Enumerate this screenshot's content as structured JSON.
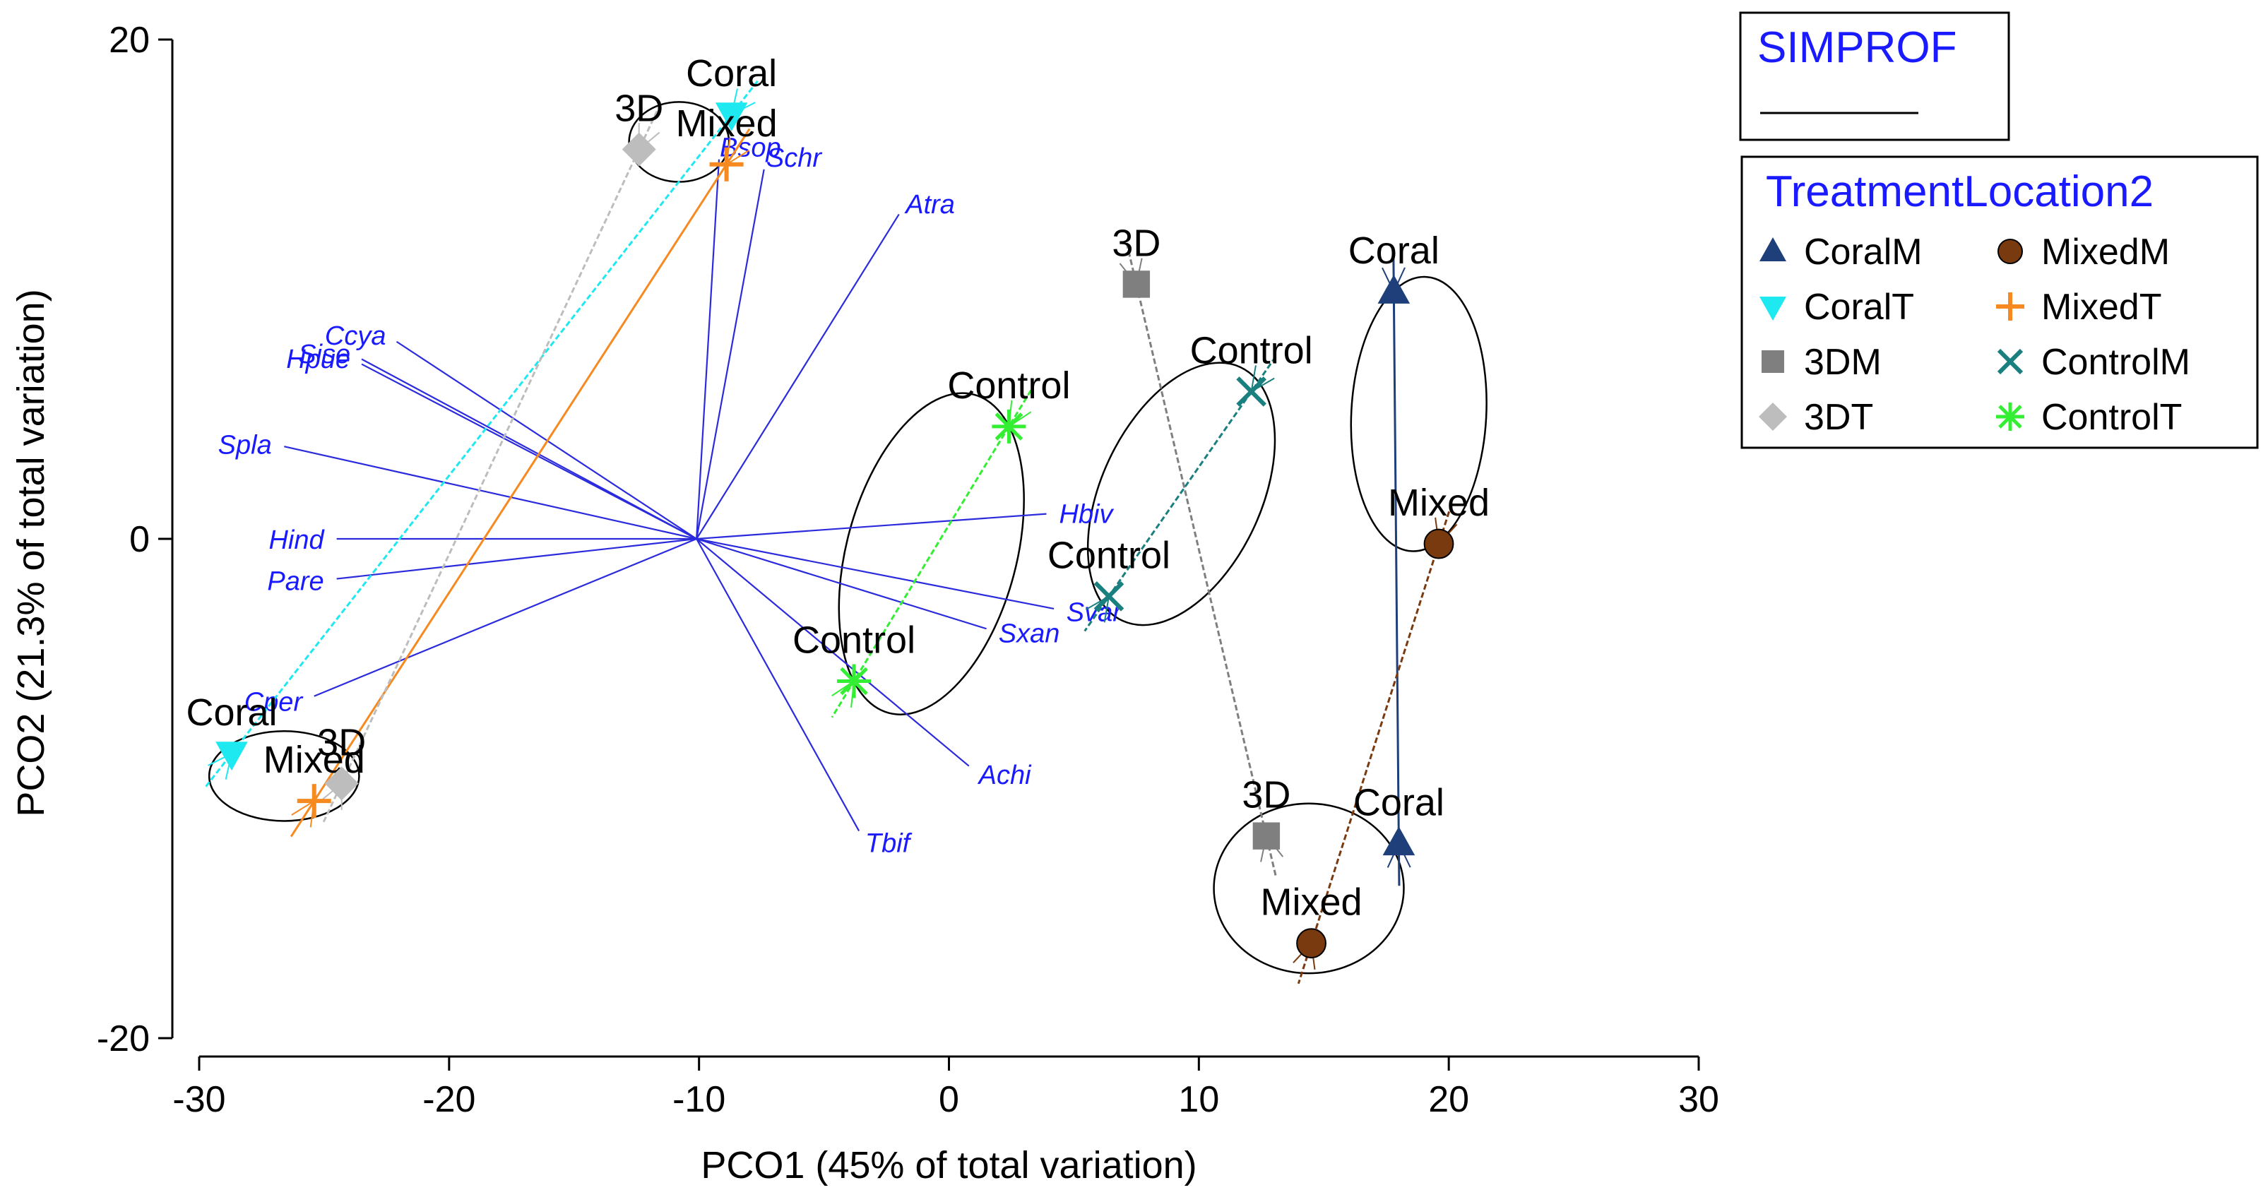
{
  "chart_data": {
    "type": "scatter",
    "subtype": "PCO ordination biplot",
    "xlabel": "PCO1 (45% of total variation)",
    "ylabel": "PCO2 (21.3% of total variation)",
    "xlim": [
      -30,
      30
    ],
    "ylim": [
      -20,
      20
    ],
    "xticks": [
      -30,
      -20,
      -10,
      0,
      10,
      20,
      30
    ],
    "yticks": [
      -20,
      0,
      20
    ],
    "grid": false,
    "legend": {
      "title": "TreatmentLocation2",
      "placement": "top-right",
      "entries": [
        {
          "name": "CoralM",
          "marker": "triangle-up",
          "color": "#1f3f7a"
        },
        {
          "name": "MixedM",
          "marker": "circle",
          "color": "#7a3a0f"
        },
        {
          "name": "CoralT",
          "marker": "triangle-down",
          "color": "#1ee8f0"
        },
        {
          "name": "MixedT",
          "marker": "plus",
          "color": "#f68a20"
        },
        {
          "name": "3DM",
          "marker": "square",
          "color": "#7f7f7f"
        },
        {
          "name": "ControlM",
          "marker": "x",
          "color": "#1a7f7f"
        },
        {
          "name": "3DT",
          "marker": "diamond",
          "color": "#bdbdbd"
        },
        {
          "name": "ControlT",
          "marker": "asterisk",
          "color": "#33ee33"
        }
      ]
    },
    "simprof": {
      "title": "SIMPROF"
    },
    "series": [
      {
        "name": "CoralM",
        "points": [
          {
            "x": 17.8,
            "y": 9.9,
            "label": "Coral"
          },
          {
            "x": 18.0,
            "y": -12.2,
            "label": "Coral"
          }
        ]
      },
      {
        "name": "MixedM",
        "points": [
          {
            "x": 19.6,
            "y": -0.2,
            "label": "Mixed"
          },
          {
            "x": 14.5,
            "y": -16.2,
            "label": "Mixed"
          }
        ]
      },
      {
        "name": "CoralT",
        "points": [
          {
            "x": -8.7,
            "y": 17.0,
            "label": "Coral"
          },
          {
            "x": -28.7,
            "y": -8.6,
            "label": "Coral"
          }
        ]
      },
      {
        "name": "MixedT",
        "points": [
          {
            "x": -8.9,
            "y": 15.0,
            "label": "Mixed"
          },
          {
            "x": -25.4,
            "y": -10.5,
            "label": "Mixed"
          }
        ]
      },
      {
        "name": "3DM",
        "points": [
          {
            "x": 7.5,
            "y": 10.2,
            "label": "3D"
          },
          {
            "x": 12.7,
            "y": -11.9,
            "label": "3D"
          }
        ]
      },
      {
        "name": "ControlM",
        "points": [
          {
            "x": 12.1,
            "y": 5.9,
            "label": "Control"
          },
          {
            "x": 6.4,
            "y": -2.3,
            "label": "Control"
          }
        ]
      },
      {
        "name": "3DT",
        "points": [
          {
            "x": -12.4,
            "y": 15.6,
            "label": "3D"
          },
          {
            "x": -24.3,
            "y": -9.8,
            "label": "3D"
          }
        ]
      },
      {
        "name": "ControlT",
        "points": [
          {
            "x": 2.4,
            "y": 4.5,
            "label": "Control"
          },
          {
            "x": -3.8,
            "y": -5.7,
            "label": "Control"
          }
        ]
      }
    ],
    "vectors": {
      "origin": [
        -10.1,
        0.0
      ],
      "items": [
        {
          "label": "Bsop",
          "x": -9.2,
          "y": 15.2
        },
        {
          "label": "Schr",
          "x": -7.4,
          "y": 14.8
        },
        {
          "label": "Atra",
          "x": -2.0,
          "y": 13.0
        },
        {
          "label": "Ccya",
          "x": -22.1,
          "y": 7.9
        },
        {
          "label": "Sise",
          "x": -23.5,
          "y": 7.2
        },
        {
          "label": "Hpue",
          "x": -23.5,
          "y": 7.0
        },
        {
          "label": "Spla",
          "x": -26.6,
          "y": 3.7
        },
        {
          "label": "Hind",
          "x": -24.5,
          "y": 0.0
        },
        {
          "label": "Pare",
          "x": -24.5,
          "y": -1.6
        },
        {
          "label": "Cper",
          "x": -25.4,
          "y": -6.3
        },
        {
          "label": "Hbiv",
          "x": 3.9,
          "y": 1.0
        },
        {
          "label": "Svar",
          "x": 4.2,
          "y": -2.8
        },
        {
          "label": "Sxan",
          "x": 1.5,
          "y": -3.6
        },
        {
          "label": "Achi",
          "x": 0.8,
          "y": -9.1
        },
        {
          "label": "Tbif",
          "x": -3.6,
          "y": -11.7
        }
      ]
    },
    "clusters": [
      {
        "members": [
          "CoralT",
          "MixedT",
          "3DT"
        ],
        "side": "top",
        "center": [
          -10.8,
          15.9
        ],
        "rx": 2.0,
        "ry": 1.6,
        "angle": 0
      },
      {
        "members": [
          "CoralT",
          "MixedT",
          "3DT"
        ],
        "side": "bottom",
        "center": [
          -26.6,
          -9.5
        ],
        "rx": 3.0,
        "ry": 1.8,
        "angle": 0
      },
      {
        "members": [
          "ControlT"
        ],
        "center": [
          -0.7,
          -0.6
        ],
        "rx": 3.4,
        "ry": 6.6,
        "angle": 15
      },
      {
        "members": [
          "ControlM"
        ],
        "center": [
          9.3,
          1.8
        ],
        "rx": 3.2,
        "ry": 5.6,
        "angle": 25
      },
      {
        "members": [
          "CoralM",
          "MixedM"
        ],
        "side": "top",
        "center": [
          18.8,
          5.0
        ],
        "rx": 2.7,
        "ry": 5.5,
        "angle": 3
      },
      {
        "members": [
          "CoralM",
          "MixedM",
          "3DM"
        ],
        "side": "bottom",
        "center": [
          14.4,
          -14.0
        ],
        "rx": 3.8,
        "ry": 3.4,
        "angle": 0
      }
    ]
  }
}
